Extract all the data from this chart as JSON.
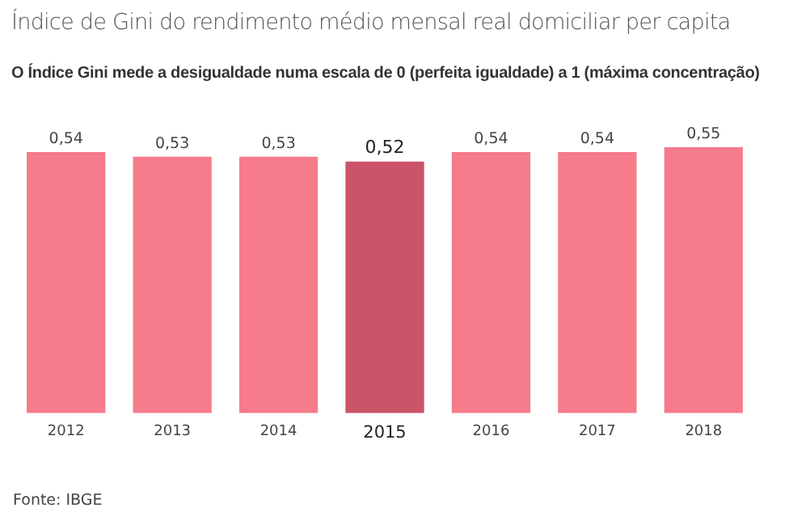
{
  "chart_data": {
    "type": "bar",
    "title": "Índice de Gini do rendimento médio mensal real domiciliar per capita",
    "subtitle": "O Índice Gini mede a desigualdade numa escala de 0 (perfeita igualdade) a 1 (máxima concentração)",
    "categories": [
      "2012",
      "2013",
      "2014",
      "2015",
      "2016",
      "2017",
      "2018"
    ],
    "values": [
      0.54,
      0.53,
      0.53,
      0.52,
      0.54,
      0.54,
      0.55
    ],
    "value_labels": [
      "0,54",
      "0,53",
      "0,53",
      "0,52",
      "0,54",
      "0,54",
      "0,55"
    ],
    "colors": [
      "#f67b8b",
      "#f67b8b",
      "#f67b8b",
      "#cc5468",
      "#f67b8b",
      "#f67b8b",
      "#f67b8b"
    ],
    "grid": false,
    "legend": false,
    "annotations": [
      "Fonte: IBGE"
    ]
  }
}
